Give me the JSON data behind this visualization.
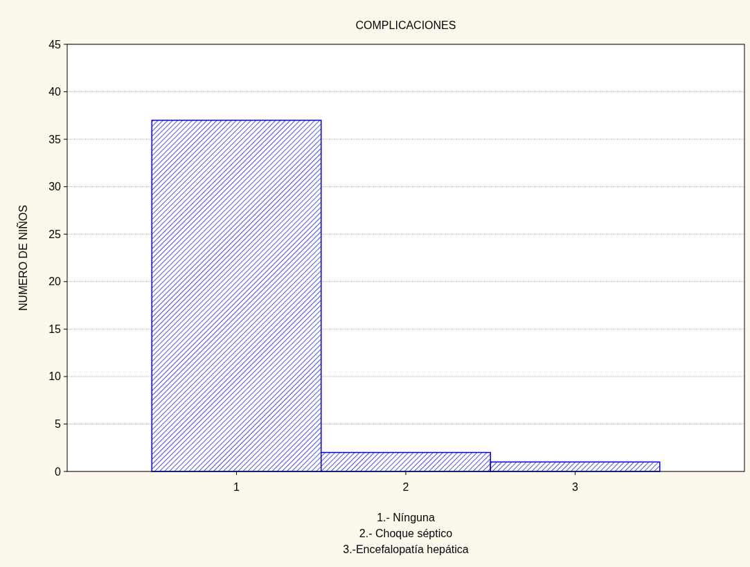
{
  "chart_data": {
    "type": "bar",
    "title": "COMPLICACIONES",
    "xlabel": "1.- Nínguna\n2.- Choque séptico\n3.-Encefalopatía hepática",
    "ylabel": "NUMERO DE NIÑOS",
    "categories": [
      "1",
      "2",
      "3"
    ],
    "values": [
      37,
      2,
      1
    ],
    "color": "#0000ff",
    "ylim": [
      0,
      45
    ],
    "yticks": [
      0,
      5,
      10,
      15,
      20,
      25,
      30,
      35,
      40,
      45
    ],
    "grid": "y"
  }
}
